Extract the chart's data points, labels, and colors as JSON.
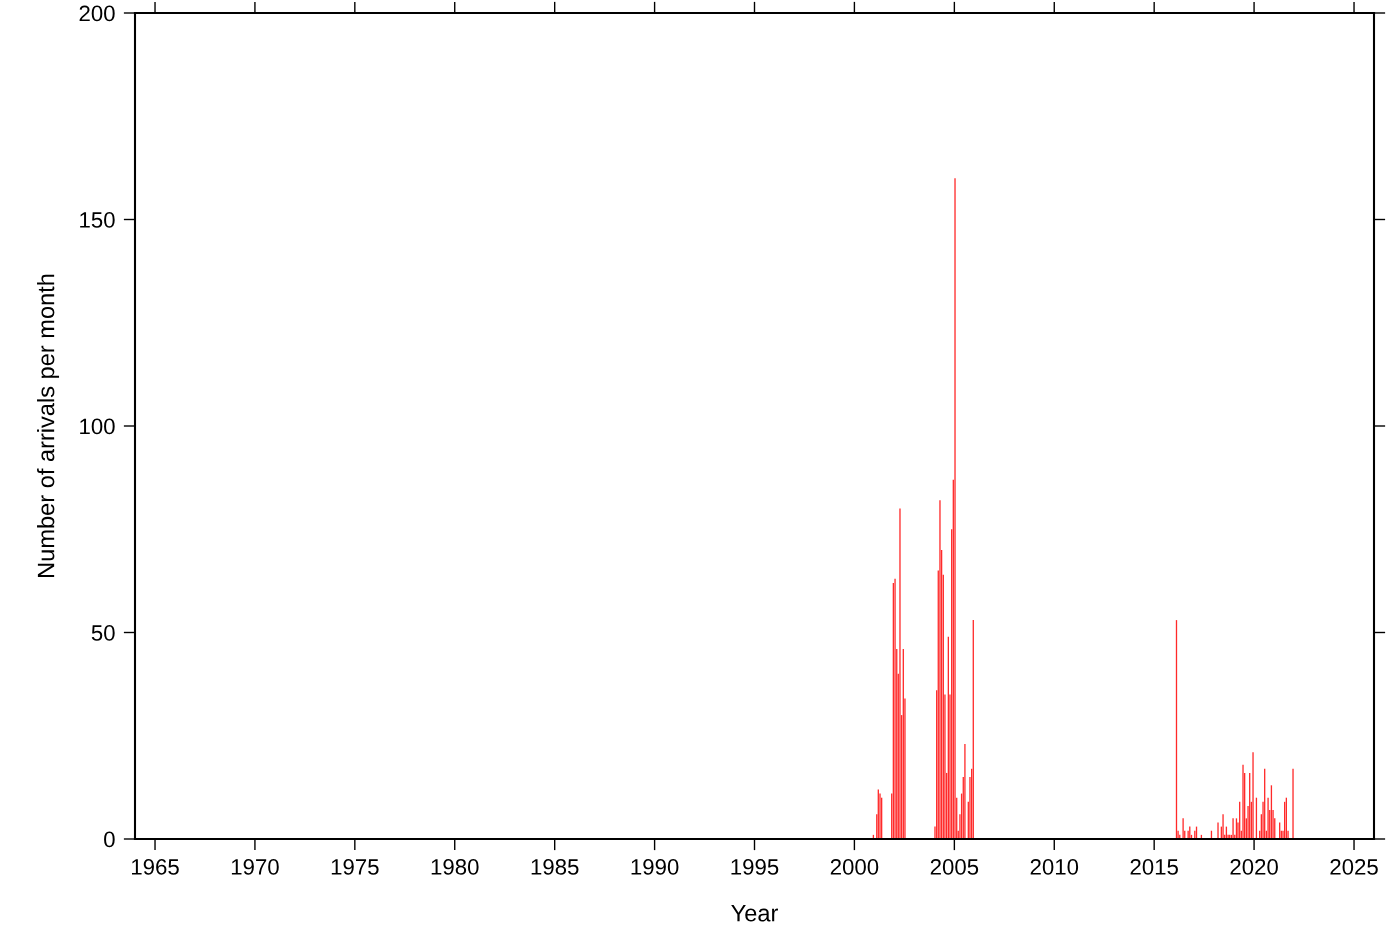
{
  "chart_data": {
    "type": "bar",
    "xlabel": "Year",
    "ylabel": "Number of arrivals per month",
    "x": [
      "2000-12",
      "2001-02",
      "2001-03",
      "2001-04",
      "2001-05",
      "2001-11",
      "2001-12",
      "2002-01",
      "2002-02",
      "2002-03",
      "2002-04",
      "2002-05",
      "2002-06",
      "2002-07",
      "2004-01",
      "2004-02",
      "2004-03",
      "2004-04",
      "2004-05",
      "2004-06",
      "2004-07",
      "2004-08",
      "2004-09",
      "2004-10",
      "2004-11",
      "2004-12",
      "2005-01",
      "2005-02",
      "2005-03",
      "2005-04",
      "2005-05",
      "2005-06",
      "2005-07",
      "2005-09",
      "2005-10",
      "2005-11",
      "2005-12",
      "2016-02",
      "2016-03",
      "2016-04",
      "2016-06",
      "2016-07",
      "2016-09",
      "2016-10",
      "2016-11",
      "2017-01",
      "2017-02",
      "2017-05",
      "2017-11",
      "2018-03",
      "2018-05",
      "2018-06",
      "2018-07",
      "2018-08",
      "2018-09",
      "2018-10",
      "2018-11",
      "2018-12",
      "2019-01",
      "2019-02",
      "2019-03",
      "2019-04",
      "2019-05",
      "2019-06",
      "2019-07",
      "2019-08",
      "2019-09",
      "2019-10",
      "2019-11",
      "2019-12",
      "2020-02",
      "2020-04",
      "2020-05",
      "2020-06",
      "2020-07",
      "2020-08",
      "2020-09",
      "2020-10",
      "2020-11",
      "2020-12",
      "2021-01",
      "2021-04",
      "2021-05",
      "2021-06",
      "2021-07",
      "2021-08",
      "2021-09",
      "2021-12"
    ],
    "series": [
      {
        "color": "#ff2a2a",
        "values": [
          1,
          6,
          12,
          11,
          10,
          11,
          62,
          63,
          46,
          40,
          80,
          30,
          46,
          34,
          3,
          36,
          65,
          82,
          70,
          64,
          35,
          16,
          49,
          35,
          75,
          87,
          160,
          10,
          2,
          6,
          11,
          15,
          23,
          9,
          15,
          17,
          53,
          53,
          2,
          1,
          5,
          2,
          2,
          3,
          1,
          2,
          3,
          1,
          2,
          4,
          3,
          6,
          1,
          3,
          1,
          1,
          1,
          5,
          1,
          5,
          4,
          9,
          2,
          18,
          16,
          5,
          8,
          16,
          9,
          21,
          10,
          2,
          6,
          9,
          17,
          2,
          10,
          7,
          13,
          7,
          5,
          4,
          2,
          2,
          9,
          10,
          2,
          17
        ]
      }
    ],
    "xlim": [
      "1964",
      "2026"
    ],
    "xticks": [
      "1965",
      "1970",
      "1975",
      "1980",
      "1985",
      "1990",
      "1995",
      "2000",
      "2005",
      "2010",
      "2015",
      "2020",
      "2025"
    ],
    "ylim": [
      0,
      200
    ],
    "yticks": [
      0,
      50,
      100,
      150,
      200
    ],
    "grid": false
  }
}
